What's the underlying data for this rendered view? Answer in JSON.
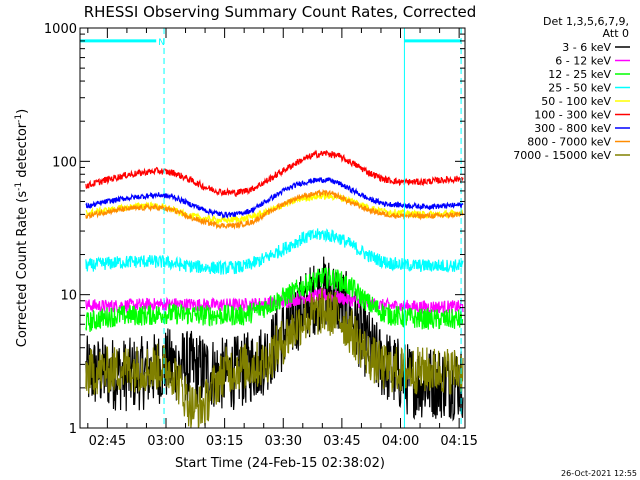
{
  "chart_data": {
    "type": "line",
    "title": "RHESSI Observing Summary Count Rates, Corrected",
    "xlabel": "Start Time (24-Feb-15 02:38:02)",
    "ylabel_parts": [
      "Corrected Count Rate (s",
      "-1",
      " detector",
      "-1",
      ")"
    ],
    "ylabel": "Corrected Count Rate (s-1 detector-1)",
    "yscale": "log",
    "ylim": [
      1,
      1000
    ],
    "y_ticks": [
      {
        "v": 1,
        "label": "1"
      },
      {
        "v": 10,
        "label": "10"
      },
      {
        "v": 100,
        "label": "100"
      },
      {
        "v": 1000,
        "label": "1000"
      }
    ],
    "xlim": [
      38.0,
      136.5
    ],
    "x_ticks": [
      {
        "t": 45,
        "label": "02:45"
      },
      {
        "t": 60,
        "label": "03:00"
      },
      {
        "t": 75,
        "label": "03:15"
      },
      {
        "t": 90,
        "label": "03:30"
      },
      {
        "t": 105,
        "label": "03:45"
      },
      {
        "t": 120,
        "label": "04:00"
      },
      {
        "t": 135,
        "label": "04:15"
      }
    ],
    "legend_header": [
      "Det 1,3,5,6,7,9,",
      "Att 0"
    ],
    "legend_placement": "right",
    "timestamp": "26-Oct-2021 12:55",
    "flags": {
      "label": "N",
      "bars": [
        {
          "start": 38.0,
          "end": 57.5,
          "y": 800
        },
        {
          "start": 121.0,
          "end": 135.5,
          "y": 800
        }
      ],
      "vlines_solid": [
        38.0,
        121.0
      ],
      "vlines_dashed": [
        59.5,
        135.5
      ],
      "color": "#00ffff"
    },
    "series": [
      {
        "name": "3 - 6 keV",
        "color": "#000000",
        "points": [
          [
            40,
            2.6
          ],
          [
            45,
            2.6
          ],
          [
            50,
            2.5
          ],
          [
            55,
            2.6
          ],
          [
            60,
            3.0
          ],
          [
            65,
            2.9
          ],
          [
            70,
            2.7
          ],
          [
            75,
            2.5
          ],
          [
            80,
            2.7
          ],
          [
            85,
            3.3
          ],
          [
            90,
            5.0
          ],
          [
            95,
            8.0
          ],
          [
            100,
            10.5
          ],
          [
            103,
            10.0
          ],
          [
            106,
            8.0
          ],
          [
            110,
            5.0
          ],
          [
            114,
            3.3
          ],
          [
            118,
            2.7
          ],
          [
            122,
            2.3
          ],
          [
            126,
            2.2
          ],
          [
            130,
            2.2
          ],
          [
            135,
            2.2
          ]
        ],
        "noise": 0.28
      },
      {
        "name": "6 - 12 keV",
        "color": "#ff00ff",
        "points": [
          [
            40,
            8.3
          ],
          [
            45,
            8.2
          ],
          [
            50,
            8.3
          ],
          [
            55,
            8.4
          ],
          [
            60,
            8.5
          ],
          [
            70,
            8.4
          ],
          [
            80,
            8.4
          ],
          [
            90,
            8.8
          ],
          [
            95,
            9.5
          ],
          [
            100,
            10.0
          ],
          [
            105,
            9.4
          ],
          [
            110,
            8.8
          ],
          [
            115,
            8.3
          ],
          [
            120,
            8.2
          ],
          [
            125,
            8.1
          ],
          [
            130,
            8.1
          ],
          [
            135,
            8.1
          ]
        ],
        "noise": 0.05
      },
      {
        "name": "12 - 25 keV",
        "color": "#00ff00",
        "points": [
          [
            40,
            6.2
          ],
          [
            45,
            6.8
          ],
          [
            50,
            7.0
          ],
          [
            55,
            7.0
          ],
          [
            60,
            7.2
          ],
          [
            70,
            7.0
          ],
          [
            80,
            7.0
          ],
          [
            85,
            8.0
          ],
          [
            90,
            9.5
          ],
          [
            95,
            11.5
          ],
          [
            100,
            13.5
          ],
          [
            104,
            13.0
          ],
          [
            108,
            11.0
          ],
          [
            112,
            8.5
          ],
          [
            116,
            7.2
          ],
          [
            120,
            6.8
          ],
          [
            125,
            6.6
          ],
          [
            130,
            6.5
          ],
          [
            135,
            6.5
          ]
        ],
        "noise": 0.08
      },
      {
        "name": "25 - 50 keV",
        "color": "#00ffff",
        "points": [
          [
            40,
            16.5
          ],
          [
            45,
            17.2
          ],
          [
            50,
            17.6
          ],
          [
            55,
            17.8
          ],
          [
            60,
            17.5
          ],
          [
            65,
            16.5
          ],
          [
            70,
            16.0
          ],
          [
            75,
            15.8
          ],
          [
            80,
            16.2
          ],
          [
            85,
            18.5
          ],
          [
            90,
            22.0
          ],
          [
            95,
            26.5
          ],
          [
            100,
            28.5
          ],
          [
            104,
            27.0
          ],
          [
            108,
            23.0
          ],
          [
            112,
            19.5
          ],
          [
            116,
            17.5
          ],
          [
            120,
            16.8
          ],
          [
            125,
            16.5
          ],
          [
            130,
            16.5
          ],
          [
            135,
            16.5
          ]
        ],
        "noise": 0.05
      },
      {
        "name": "50 - 100 keV",
        "color": "#ffff00",
        "points": [
          [
            40,
            41
          ],
          [
            45,
            43
          ],
          [
            50,
            45
          ],
          [
            55,
            47
          ],
          [
            60,
            45
          ],
          [
            65,
            40
          ],
          [
            70,
            37
          ],
          [
            75,
            36
          ],
          [
            80,
            37
          ],
          [
            85,
            41
          ],
          [
            90,
            47
          ],
          [
            95,
            53
          ],
          [
            100,
            55
          ],
          [
            104,
            54
          ],
          [
            108,
            50
          ],
          [
            112,
            45
          ],
          [
            116,
            42
          ],
          [
            120,
            41
          ],
          [
            125,
            40
          ],
          [
            130,
            40
          ],
          [
            135,
            41
          ]
        ],
        "noise": 0.025
      },
      {
        "name": "100 - 300 keV",
        "color": "#ff0000",
        "points": [
          [
            40,
            66
          ],
          [
            45,
            73
          ],
          [
            50,
            79
          ],
          [
            55,
            83
          ],
          [
            58,
            85
          ],
          [
            62,
            82
          ],
          [
            66,
            73
          ],
          [
            70,
            64
          ],
          [
            74,
            59
          ],
          [
            78,
            58
          ],
          [
            82,
            62
          ],
          [
            86,
            72
          ],
          [
            90,
            85
          ],
          [
            94,
            100
          ],
          [
            98,
            112
          ],
          [
            101,
            115
          ],
          [
            104,
            110
          ],
          [
            108,
            96
          ],
          [
            112,
            82
          ],
          [
            116,
            73
          ],
          [
            120,
            70
          ],
          [
            125,
            70
          ],
          [
            130,
            72
          ],
          [
            135,
            74
          ]
        ],
        "noise": 0.025
      },
      {
        "name": "300 - 800 keV",
        "color": "#0000ff",
        "points": [
          [
            40,
            46
          ],
          [
            45,
            50
          ],
          [
            50,
            53
          ],
          [
            55,
            55
          ],
          [
            58,
            56
          ],
          [
            62,
            54
          ],
          [
            66,
            48
          ],
          [
            70,
            43
          ],
          [
            74,
            40
          ],
          [
            78,
            40
          ],
          [
            82,
            43
          ],
          [
            86,
            51
          ],
          [
            90,
            60
          ],
          [
            94,
            68
          ],
          [
            98,
            72
          ],
          [
            101,
            73
          ],
          [
            104,
            69
          ],
          [
            108,
            60
          ],
          [
            112,
            52
          ],
          [
            116,
            48
          ],
          [
            120,
            47
          ],
          [
            125,
            46
          ],
          [
            130,
            46
          ],
          [
            135,
            47
          ]
        ],
        "noise": 0.02
      },
      {
        "name": "800 - 7000 keV",
        "color": "#ff8c00",
        "points": [
          [
            40,
            39
          ],
          [
            45,
            42
          ],
          [
            50,
            44
          ],
          [
            55,
            45
          ],
          [
            58,
            45
          ],
          [
            62,
            43
          ],
          [
            66,
            38
          ],
          [
            70,
            35
          ],
          [
            74,
            33
          ],
          [
            78,
            33
          ],
          [
            82,
            35
          ],
          [
            86,
            41
          ],
          [
            90,
            48
          ],
          [
            94,
            54
          ],
          [
            98,
            57
          ],
          [
            101,
            58
          ],
          [
            104,
            55
          ],
          [
            108,
            48
          ],
          [
            112,
            43
          ],
          [
            116,
            40
          ],
          [
            120,
            39
          ],
          [
            125,
            39
          ],
          [
            130,
            39
          ],
          [
            135,
            40
          ]
        ],
        "noise": 0.02
      },
      {
        "name": "7000 - 15000 keV",
        "color": "#808000",
        "points": [
          [
            40,
            2.6
          ],
          [
            45,
            2.7
          ],
          [
            50,
            2.8
          ],
          [
            55,
            2.8
          ],
          [
            60,
            2.9
          ],
          [
            62,
            2.6
          ],
          [
            64,
            2.0
          ],
          [
            66,
            1.5
          ],
          [
            68,
            1.4
          ],
          [
            70,
            1.5
          ],
          [
            72,
            2.0
          ],
          [
            75,
            2.7
          ],
          [
            80,
            2.9
          ],
          [
            85,
            3.0
          ],
          [
            90,
            4.5
          ],
          [
            95,
            6.5
          ],
          [
            100,
            7.5
          ],
          [
            104,
            7.0
          ],
          [
            108,
            5.0
          ],
          [
            112,
            3.4
          ],
          [
            116,
            2.8
          ],
          [
            120,
            2.7
          ],
          [
            125,
            2.7
          ],
          [
            130,
            2.7
          ],
          [
            135,
            2.7
          ]
        ],
        "noise": 0.18
      }
    ]
  }
}
